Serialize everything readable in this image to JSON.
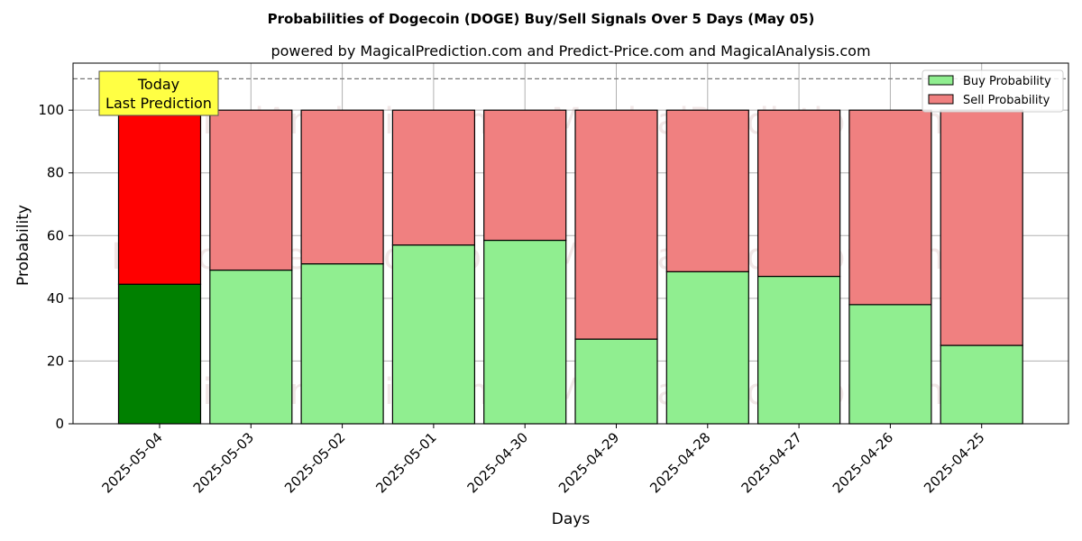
{
  "chart_data": {
    "type": "bar",
    "stacked": true,
    "title": "Probabilities of Dogecoin (DOGE) Buy/Sell Signals Over 5 Days (May 05)",
    "subtitle": "powered by MagicalPrediction.com and Predict-Price.com and MagicalAnalysis.com",
    "xlabel": "Days",
    "ylabel": "Probability",
    "ylim": [
      0,
      115
    ],
    "yticks": [
      0,
      20,
      40,
      60,
      80,
      100
    ],
    "grid": true,
    "legend_position": "top-right",
    "categories": [
      "2025-05-04",
      "2025-05-03",
      "2025-05-02",
      "2025-05-01",
      "2025-04-30",
      "2025-04-29",
      "2025-04-28",
      "2025-04-27",
      "2025-04-26",
      "2025-04-25"
    ],
    "series": [
      {
        "name": "Buy Probability",
        "color": "#90ee90",
        "highlight_color": "#008000",
        "values": [
          44.5,
          49.0,
          51.0,
          57.0,
          58.5,
          27.0,
          48.5,
          47.0,
          38.0,
          25.0
        ]
      },
      {
        "name": "Sell Probability",
        "color": "#f08080",
        "highlight_color": "#ff0000",
        "values": [
          55.5,
          51.0,
          49.0,
          43.0,
          41.5,
          73.0,
          51.5,
          53.0,
          62.0,
          75.0
        ]
      }
    ],
    "highlight_index": 0,
    "reference_line": {
      "y": 110,
      "style": "dashed"
    },
    "annotation": {
      "lines": [
        "Today",
        "Last Prediction"
      ],
      "background": "#ffff44"
    },
    "watermarks": [
      "MagicalAnalysis.com",
      "MagicalPrediction.com"
    ]
  }
}
